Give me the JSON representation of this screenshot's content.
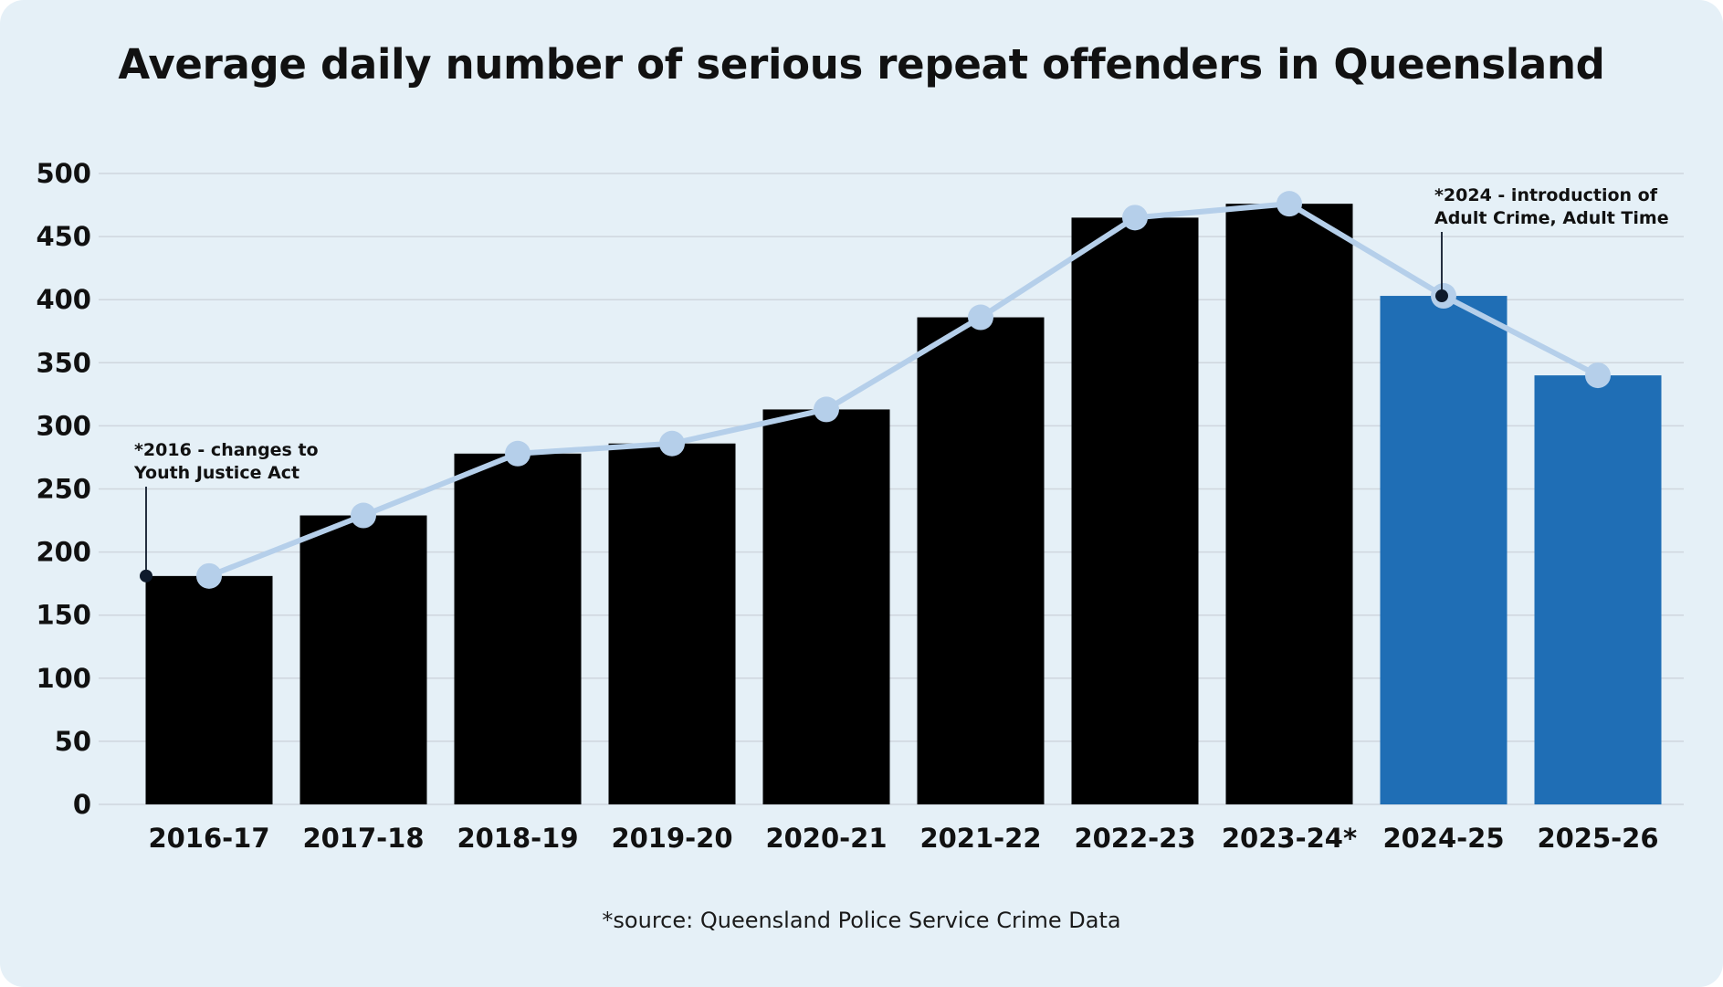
{
  "colors": {
    "background": "#e5f0f7",
    "bar_default": "#000000",
    "bar_highlight": "#1f6eb5",
    "line": "#b5cfea",
    "grid": "#cfd6de",
    "annotation_dot": "#0e1a2b"
  },
  "chart_data": {
    "type": "bar",
    "title": "Average daily number of serious repeat offenders in Queensland",
    "xlabel": "",
    "ylabel": "",
    "ylim": [
      0,
      500
    ],
    "yticks": [
      0,
      50,
      100,
      150,
      200,
      250,
      300,
      350,
      400,
      450,
      500
    ],
    "grid": true,
    "categories": [
      "2016-17",
      "2017-18",
      "2018-19",
      "2019-20",
      "2020-21",
      "2021-22",
      "2022-23",
      "2023-24*",
      "2024-25",
      "2025-26"
    ],
    "values": [
      181,
      229,
      278,
      286,
      313,
      386,
      465,
      476,
      403,
      340
    ],
    "highlighted_categories": [
      "2024-25",
      "2025-26"
    ],
    "overlay_line": {
      "values": [
        181,
        229,
        278,
        286,
        313,
        386,
        465,
        476,
        403,
        340
      ],
      "markers": true
    },
    "annotations": [
      {
        "id": "annotation-2016",
        "lines": [
          "*2016 - changes to",
          "Youth Justice Act"
        ],
        "category": "2016-17",
        "value": 181
      },
      {
        "id": "annotation-2024",
        "lines": [
          "*2024 - introduction of",
          "Adult Crime, Adult Time"
        ],
        "category": "2024-25",
        "value": 403
      }
    ]
  },
  "source": "*source: Queensland Police Service Crime Data"
}
